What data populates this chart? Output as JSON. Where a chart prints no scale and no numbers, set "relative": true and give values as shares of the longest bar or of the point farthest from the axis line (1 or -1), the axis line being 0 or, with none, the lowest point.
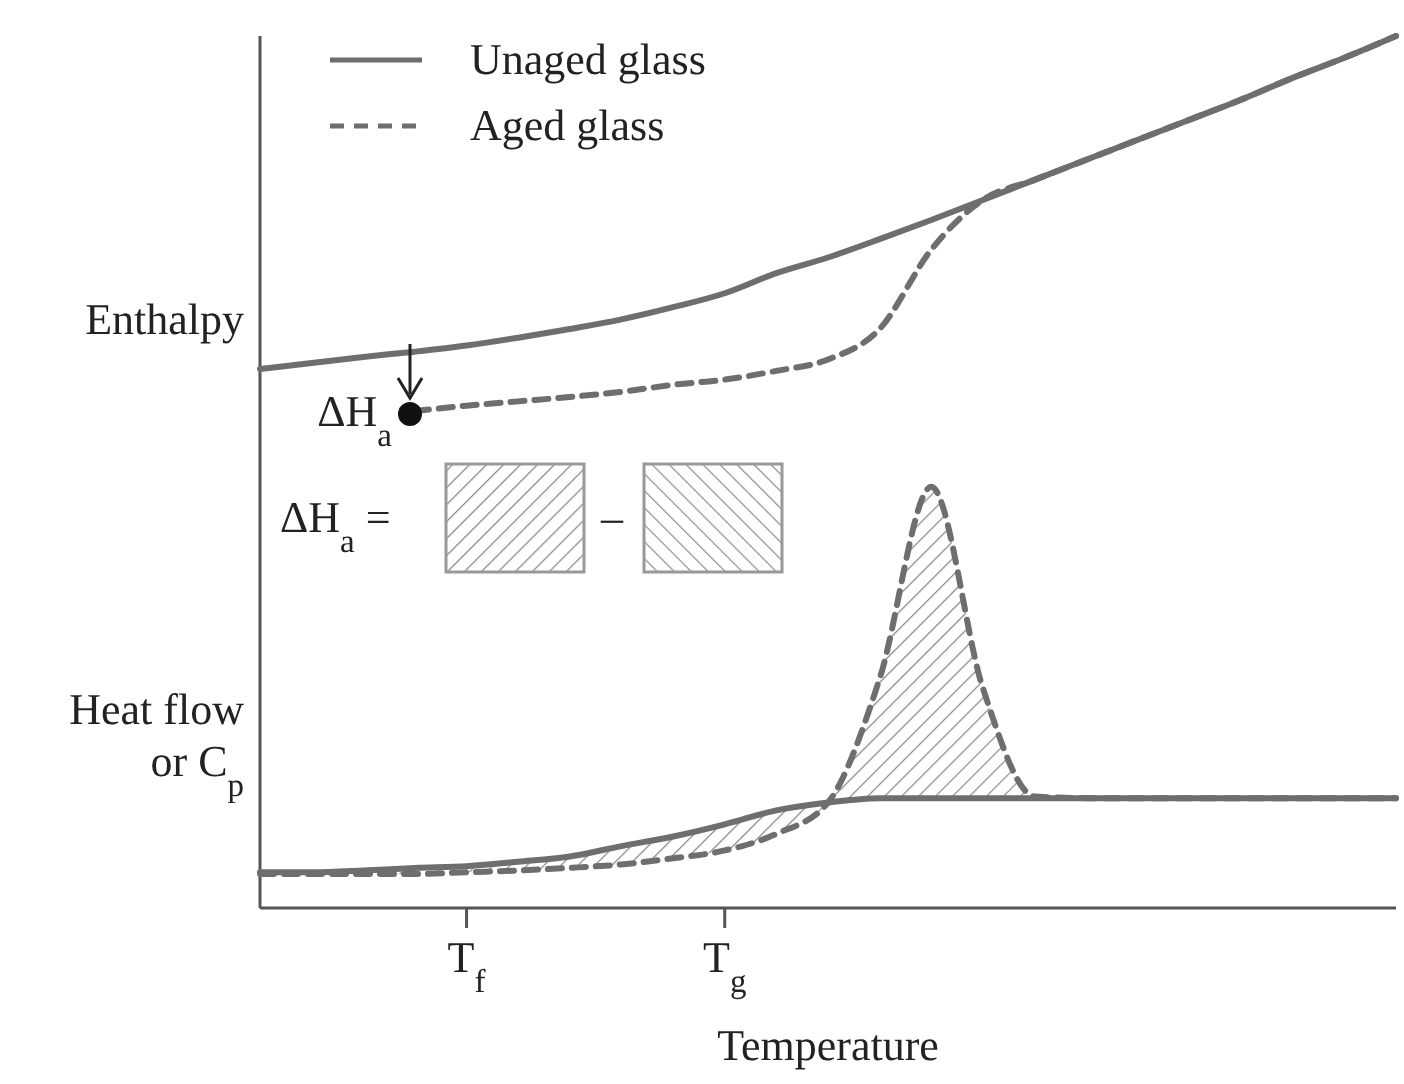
{
  "chart_data": {
    "type": "line",
    "relative": true,
    "xlabel": "Temperature",
    "categories": [
      null,
      null,
      null,
      null,
      "T$_{f}$",
      null,
      null,
      null,
      null,
      "T$_{g}$",
      null,
      null,
      null,
      null,
      null,
      null,
      null,
      null,
      null,
      null,
      null,
      null,
      null
    ],
    "series": [
      {
        "name": "Unaged glass",
        "color": "#6e6e6e",
        "line_style": "solid",
        "values": [
          0.618,
          0.625,
          0.632,
          0.638,
          0.645,
          0.654,
          0.664,
          0.675,
          0.689,
          0.705,
          0.728,
          0.746,
          0.767,
          0.789,
          0.812,
          0.835,
          0.858,
          0.881,
          0.904,
          0.927,
          0.952,
          0.975,
          1
        ]
      },
      {
        "name": "Aged glass",
        "color": "#6e6e6e",
        "line_style": "dashed",
        "values": [
          null,
          null,
          null,
          0.57,
          0.576,
          0.581,
          0.586,
          0.592,
          0.6,
          0.606,
          0.616,
          0.629,
          0.664,
          0.755,
          0.812,
          0.835,
          0.858,
          0.881,
          0.904,
          0.927,
          0.952,
          0.975,
          1
        ]
      },
      {
        "color": "#6e6e6e",
        "line_style": "solid",
        "values": [
          0.041,
          0.041,
          0.043,
          0.046,
          0.048,
          0.053,
          0.059,
          0.071,
          0.082,
          0.096,
          0.112,
          0.121,
          0.126,
          0.126,
          0.126,
          0.126,
          0.126,
          0.126,
          0.126,
          0.126,
          0.126,
          0.126,
          0.126
        ]
      },
      {
        "color": "#6e6e6e",
        "line_style": "dashed",
        "values": [
          0.039,
          0.039,
          0.039,
          0.039,
          0.041,
          0.043,
          0.046,
          0.05,
          0.057,
          0.066,
          0.085,
          0.121,
          0.263,
          0.483,
          0.252,
          0.128,
          0.126,
          0.126,
          0.126,
          0.126,
          0.126,
          0.126,
          0.126
        ]
      }
    ],
    "annotations": [
      "Enthalpy",
      "Heat flow\nor C$_{p}$",
      "ΔH$_{a}$",
      "ΔH$_{a}$ =",
      "–"
    ],
    "legend": "top left"
  }
}
